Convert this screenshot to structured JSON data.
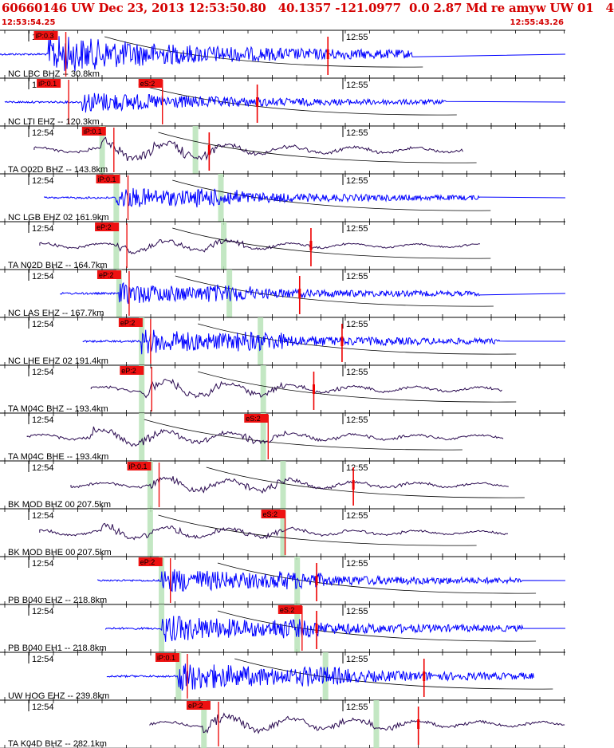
{
  "header": {
    "title": "60660146 UW Dec 23, 2013 12:53:50.80   40.1357 -121.0977  0.0 2.87 Md re amyw UW 01   4",
    "start_time": "12:53:54.25",
    "end_time": "12:55:43.26"
  },
  "colors": {
    "header_red": "#d40000",
    "trace_blue": "#0000ff",
    "trace_purple": "#2a0a50",
    "pick_red": "#ee0000",
    "shade_green": "#b9e3b9",
    "moveout_line": "#000000"
  },
  "time_marks": {
    "left": "12:54",
    "right": "12:55"
  },
  "traces": [
    {
      "label": "NC LBC BHZ -- 30.8km",
      "color": "blue",
      "picks": [
        {
          "text": "iP:0.3",
          "pos": 0.06
        }
      ],
      "s_pick": null,
      "red_mark": 0.58,
      "onset": 0.085,
      "end": 0.73,
      "amp": 1.0,
      "green": []
    },
    {
      "label": "NC LTI EHZ -- 120.3km",
      "color": "blue",
      "picks": [
        {
          "text": "iP:0.1",
          "pos": 0.065
        },
        {
          "text": "eS:2",
          "pos": 0.245
        }
      ],
      "s_pick": 0.285,
      "red_mark": 0.455,
      "onset": 0.145,
      "end": 0.79,
      "amp": 0.55,
      "green": []
    },
    {
      "label": "TA O02D BHZ -- 143.8km",
      "color": "purple",
      "picks": [
        {
          "text": "iP:0.1",
          "pos": 0.145
        }
      ],
      "s_pick": null,
      "red_mark": 0.37,
      "onset": 0.18,
      "end": 0.82,
      "amp": 0.7,
      "green": [
        0.18,
        0.345
      ]
    },
    {
      "label": "NC LGB EHZ 02 161.9km",
      "color": "blue",
      "picks": [
        {
          "text": "iP:0.1",
          "pos": 0.17
        }
      ],
      "s_pick": null,
      "red_mark": null,
      "onset": 0.205,
      "end": 0.85,
      "amp": 0.55,
      "green": [
        0.205,
        0.39
      ]
    },
    {
      "label": "TA N02D BHZ -- 164.7km",
      "color": "purple",
      "picks": [
        {
          "text": "eP:2",
          "pos": 0.168
        }
      ],
      "s_pick": null,
      "red_mark": 0.55,
      "onset": 0.205,
      "end": 0.85,
      "amp": 0.45,
      "green": [
        0.205,
        0.395
      ]
    },
    {
      "label": "NC LAS EHZ -- 167.7km",
      "color": "blue",
      "picks": [
        {
          "text": "eP:2",
          "pos": 0.172
        }
      ],
      "s_pick": null,
      "red_mark": 0.53,
      "onset": 0.21,
      "end": 0.85,
      "amp": 0.55,
      "green": [
        0.21,
        0.405
      ]
    },
    {
      "label": "NC LHE EHZ 02 191.4km",
      "color": "blue",
      "picks": [
        {
          "text": "eP:2",
          "pos": 0.21
        }
      ],
      "s_pick": null,
      "red_mark": 0.605,
      "onset": 0.25,
      "end": 0.885,
      "amp": 0.65,
      "green": [
        0.25,
        0.46
      ]
    },
    {
      "label": "TA M04C BHZ -- 193.4km",
      "color": "purple",
      "picks": [
        {
          "text": "eP:2",
          "pos": 0.212
        }
      ],
      "s_pick": null,
      "red_mark": 0.555,
      "onset": 0.25,
      "end": 0.89,
      "amp": 0.6,
      "green": [
        0.25,
        0.465
      ]
    },
    {
      "label": "TA M04C BHE -- 193.4km",
      "color": "purple",
      "picks": [
        {
          "text": "eS:2",
          "pos": 0.432
        }
      ],
      "s_pick": null,
      "red_mark": null,
      "onset": 0.155,
      "end": 0.89,
      "amp": 0.6,
      "green": [
        0.25,
        0.465
      ]
    },
    {
      "label": "BK MOD BHZ 00 207.5km",
      "color": "purple",
      "picks": [
        {
          "text": "iP:0.1",
          "pos": 0.225
        }
      ],
      "s_pick": null,
      "red_mark": 0.625,
      "onset": 0.265,
      "end": 0.9,
      "amp": 0.55,
      "green": [
        0.265,
        0.5
      ]
    },
    {
      "label": "BK MOD BHE 00 207.5km",
      "color": "purple",
      "picks": [
        {
          "text": "eS:2",
          "pos": 0.462
        }
      ],
      "s_pick": null,
      "red_mark": null,
      "onset": 0.18,
      "end": 0.9,
      "amp": 0.5,
      "green": [
        0.265,
        0.5
      ]
    },
    {
      "label": "PB B040 EHZ -- 218.8km",
      "color": "blue",
      "picks": [
        {
          "text": "eP:2",
          "pos": 0.245
        }
      ],
      "s_pick": null,
      "red_mark": 0.56,
      "onset": 0.285,
      "end": 0.925,
      "amp": 0.65,
      "green": [
        0.285,
        0.525
      ]
    },
    {
      "label": "PB B040 EH1 -- 218.8km",
      "color": "blue",
      "picks": [
        {
          "text": "eS:2",
          "pos": 0.492
        }
      ],
      "s_pick": null,
      "red_mark": 0.56,
      "onset": 0.285,
      "end": 0.925,
      "amp": 0.7,
      "green": [
        0.285,
        0.525
      ]
    },
    {
      "label": "UW HOG EHZ -- 239.8km",
      "color": "blue",
      "picks": [
        {
          "text": "iP:0.1",
          "pos": 0.275
        }
      ],
      "s_pick": null,
      "red_mark": 0.75,
      "onset": 0.315,
      "end": 0.945,
      "amp": 0.75,
      "green": [
        0.315,
        0.575
      ]
    },
    {
      "label": "TA K04D BHZ -- 282.1km",
      "color": "purple",
      "picks": [
        {
          "text": "eP:2",
          "pos": 0.33
        }
      ],
      "s_pick": null,
      "red_mark": 0.74,
      "onset": 0.36,
      "end": 1.0,
      "amp": 0.65,
      "green": [
        0.36,
        0.665
      ]
    }
  ]
}
